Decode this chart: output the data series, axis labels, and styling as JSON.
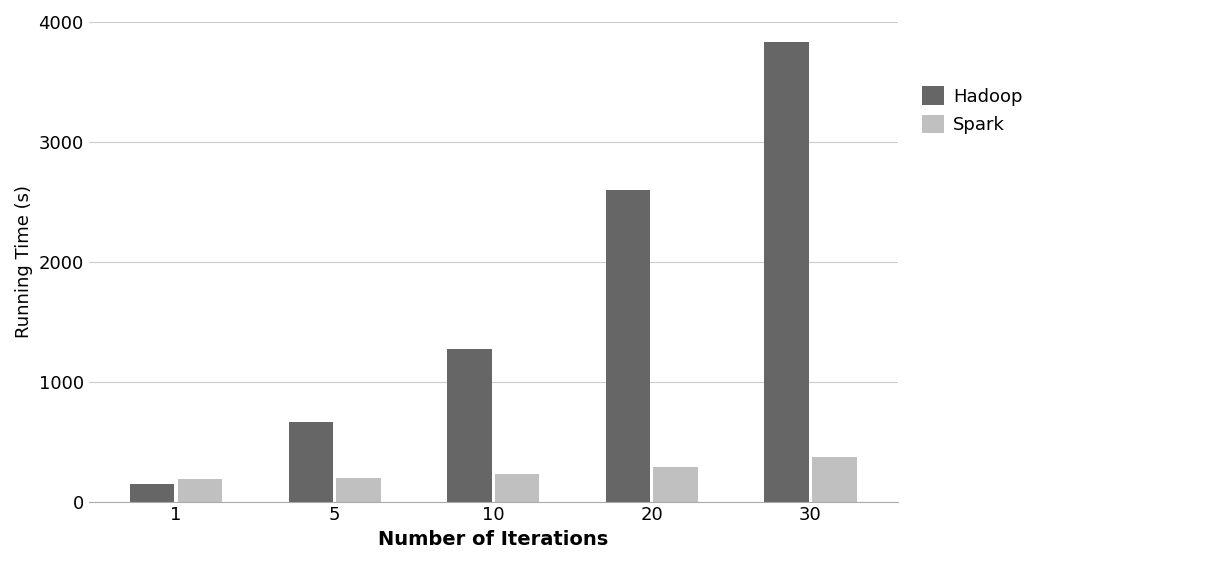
{
  "categories": [
    "1",
    "5",
    "10",
    "20",
    "30"
  ],
  "hadoop_values": [
    150,
    660,
    1270,
    2600,
    3830
  ],
  "spark_values": [
    185,
    200,
    230,
    285,
    370
  ],
  "hadoop_color": "#666666",
  "spark_color": "#C0C0C0",
  "ylabel": "Running Time (s)",
  "xlabel": "Number of Iterations",
  "ylim": [
    0,
    4000
  ],
  "yticks": [
    0,
    1000,
    2000,
    3000,
    4000
  ],
  "legend_labels": [
    "Hadoop",
    "Spark"
  ],
  "bar_width": 0.28,
  "ylabel_fontsize": 13,
  "xlabel_fontsize": 14,
  "xlabel_fontweight": "bold",
  "tick_fontsize": 13,
  "legend_fontsize": 13,
  "grid_color": "#CCCCCC",
  "background_color": "#FFFFFF"
}
